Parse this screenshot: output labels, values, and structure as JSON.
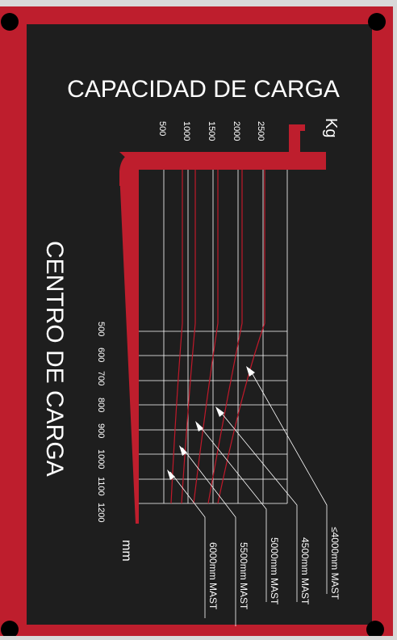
{
  "plate": {
    "title": "CAPACIDAD DE CARGA",
    "side_title": "CENTRO DE CARGA",
    "capacity_unit": "Kg",
    "center_unit": "mm",
    "colors": {
      "border": "#be1e2d",
      "panel": "#1e1e1e",
      "line": "#ffffff",
      "curve": "#c0192a",
      "text": "#ffffff"
    }
  },
  "capacity_ticks": [
    "500",
    "1000",
    "1500",
    "2000",
    "2500"
  ],
  "center_ticks": [
    "500",
    "600",
    "700",
    "800",
    "900",
    "1000",
    "1100",
    "1200"
  ],
  "masts": [
    {
      "label": "≤4000mm  MAST"
    },
    {
      "label": "4500mm  MAST"
    },
    {
      "label": "5000mm  MAST"
    },
    {
      "label": "5500mm  MAST"
    },
    {
      "label": "6000mm  MAST"
    }
  ]
}
